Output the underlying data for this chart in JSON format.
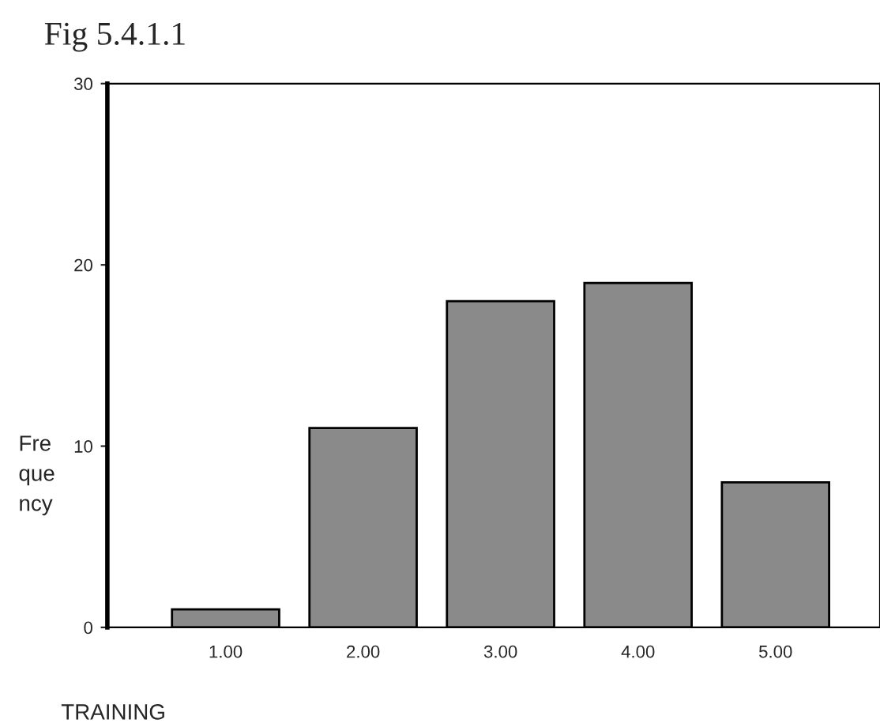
{
  "chart_data": {
    "type": "bar",
    "title": "Fig 5.4.1.1",
    "xlabel": "TRAINING",
    "ylabel": "Fre\nque\nncy",
    "categories": [
      "1.00",
      "2.00",
      "3.00",
      "4.00",
      "5.00"
    ],
    "values": [
      1,
      11,
      18,
      19,
      8
    ],
    "color": "#8a8a8a",
    "ylim": [
      0,
      30
    ],
    "yticks": [
      0,
      10,
      20,
      30
    ],
    "grid": false,
    "legend": false
  }
}
